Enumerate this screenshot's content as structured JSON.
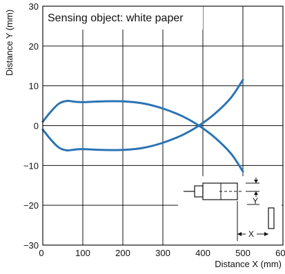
{
  "chart_data": {
    "type": "line",
    "title": "Sensing object: white paper",
    "xlabel": "Distance X (mm)",
    "ylabel": "Distance Y (mm)",
    "xlim": [
      0,
      600
    ],
    "ylim": [
      -30,
      30
    ],
    "xticks": [
      0,
      100,
      200,
      300,
      400,
      500,
      600
    ],
    "yticks": [
      -30,
      -20,
      -10,
      0,
      10,
      20,
      30
    ],
    "ytick_labels": [
      "−30",
      "−20",
      "−10",
      "0",
      "10",
      "20",
      "30"
    ],
    "grid": true,
    "series": [
      {
        "points": [
          [
            0,
            1
          ],
          [
            20,
            3.5
          ],
          [
            40,
            5.5
          ],
          [
            60,
            6.2
          ],
          [
            80,
            6
          ],
          [
            100,
            5.9
          ],
          [
            150,
            6.1
          ],
          [
            200,
            6.1
          ],
          [
            250,
            5.6
          ],
          [
            300,
            4.3
          ],
          [
            350,
            2.3
          ],
          [
            390,
            0
          ],
          [
            430,
            -3
          ],
          [
            470,
            -7
          ],
          [
            500,
            -11.5
          ]
        ]
      },
      {
        "points": [
          [
            0,
            -1
          ],
          [
            20,
            -3.5
          ],
          [
            40,
            -5.5
          ],
          [
            60,
            -6.2
          ],
          [
            80,
            -6
          ],
          [
            100,
            -5.9
          ],
          [
            150,
            -6.1
          ],
          [
            200,
            -6.1
          ],
          [
            250,
            -5.6
          ],
          [
            300,
            -4.3
          ],
          [
            350,
            -2.3
          ],
          [
            390,
            0
          ],
          [
            430,
            3
          ],
          [
            470,
            7
          ],
          [
            500,
            11.5
          ]
        ]
      }
    ],
    "line_color": "#2a73b5",
    "inset": {
      "y_label": "Y",
      "x_label": "X"
    }
  }
}
